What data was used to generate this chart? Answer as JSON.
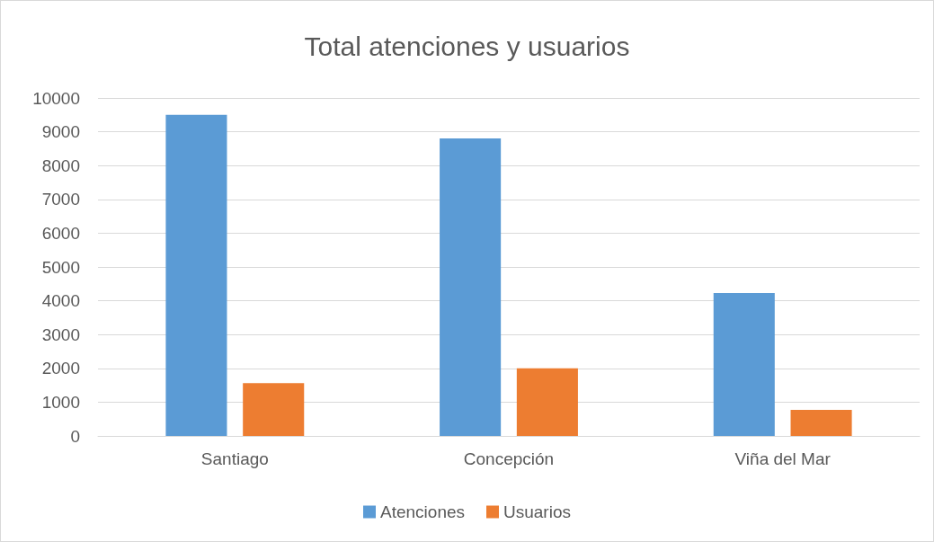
{
  "chart_data": {
    "type": "bar",
    "title": "Total atenciones y usuarios",
    "categories": [
      "Santiago",
      "Concepción",
      "Viña del Mar"
    ],
    "series": [
      {
        "name": "Atenciones",
        "color": "#5b9bd5",
        "values": [
          9500,
          8800,
          4230
        ]
      },
      {
        "name": "Usuarios",
        "color": "#ed7d31",
        "values": [
          1560,
          2000,
          770
        ]
      }
    ],
    "ylim": [
      0,
      10000
    ],
    "yticks": [
      0,
      1000,
      2000,
      3000,
      4000,
      5000,
      6000,
      7000,
      8000,
      9000,
      10000
    ],
    "grid": "y",
    "legend": "bottom"
  }
}
